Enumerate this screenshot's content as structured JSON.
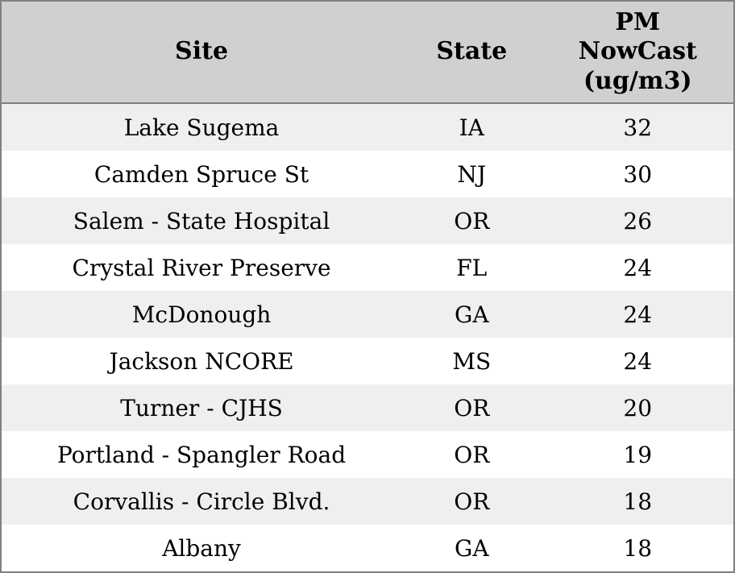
{
  "chart_data": {
    "type": "table",
    "columns": [
      {
        "key": "site",
        "label": "Site"
      },
      {
        "key": "state",
        "label": "State"
      },
      {
        "key": "pm_nowcast_ugm3",
        "label": "PM NowCast (ug/m3)",
        "display_label": "PM\nNowCast\n(ug/m3)"
      }
    ],
    "rows": [
      {
        "site": "Lake Sugema",
        "state": "IA",
        "pm_nowcast_ugm3": 32
      },
      {
        "site": "Camden Spruce St",
        "state": "NJ",
        "pm_nowcast_ugm3": 30
      },
      {
        "site": "Salem - State Hospital",
        "state": "OR",
        "pm_nowcast_ugm3": 26
      },
      {
        "site": "Crystal River Preserve",
        "state": "FL",
        "pm_nowcast_ugm3": 24
      },
      {
        "site": "McDonough",
        "state": "GA",
        "pm_nowcast_ugm3": 24
      },
      {
        "site": "Jackson NCORE",
        "state": "MS",
        "pm_nowcast_ugm3": 24
      },
      {
        "site": "Turner - CJHS",
        "state": "OR",
        "pm_nowcast_ugm3": 20
      },
      {
        "site": "Portland - Spangler Road",
        "state": "OR",
        "pm_nowcast_ugm3": 19
      },
      {
        "site": "Corvallis - Circle Blvd.",
        "state": "OR",
        "pm_nowcast_ugm3": 18
      },
      {
        "site": "Albany",
        "state": "GA",
        "pm_nowcast_ugm3": 18
      }
    ]
  },
  "colors": {
    "header_bg": "#d0d0d0",
    "row_odd_bg": "#efefef",
    "row_even_bg": "#ffffff",
    "border": "#808080",
    "text": "#000000"
  }
}
